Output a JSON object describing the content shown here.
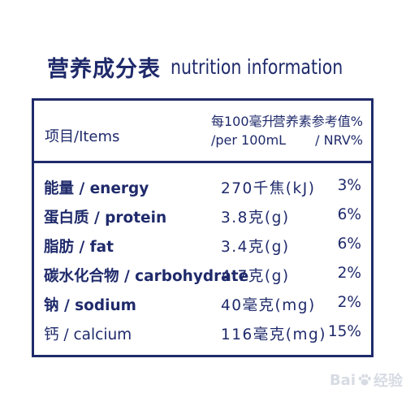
{
  "colors": {
    "ink": "#1f2a6b"
  },
  "title": {
    "cn": "营养成分表",
    "en": "nutrition information"
  },
  "table": {
    "header": {
      "items_label": "项目/Items",
      "per_cn": "每100毫升",
      "per_en": "/per 100mL",
      "nrv_cn": "营养素参考值%",
      "nrv_en": "/ NRV%"
    },
    "rows": [
      {
        "name": "能量 / energy",
        "value": "270千焦(kJ)",
        "nrv": "3%"
      },
      {
        "name": "蛋白质 / protein",
        "value": "3.8克(g)",
        "nrv": "6%"
      },
      {
        "name": "脂肪 / fat",
        "value": "3.4克(g)",
        "nrv": "6%"
      },
      {
        "name": "碳水化合物 / carbohydrate",
        "value": "4.7克(g)",
        "nrv": "2%"
      },
      {
        "name": "钠 / sodium",
        "value": "40毫克(mg)",
        "nrv": "2%"
      },
      {
        "name": "钙 / calcium",
        "value": "116毫克(mg)",
        "nrv": "15%"
      }
    ]
  },
  "watermark": {
    "text_left": "Bai",
    "text_right": "经验",
    "icon": "paw-icon"
  }
}
